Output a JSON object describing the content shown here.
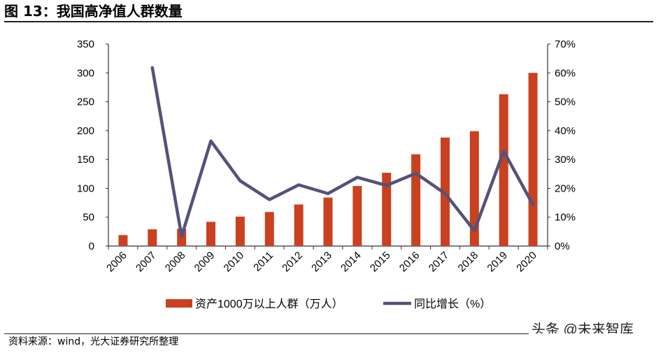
{
  "header": {
    "title": "图 13：我国高净值人群数量"
  },
  "footer": {
    "source": "资料来源：wind，光大证券研究所整理",
    "watermark": "头条 @未来智库"
  },
  "chart_data": {
    "type": "bar+line",
    "title": "",
    "categories": [
      "2006",
      "2007",
      "2008",
      "2009",
      "2010",
      "2011",
      "2012",
      "2013",
      "2014",
      "2015",
      "2016",
      "2017",
      "2018",
      "2019",
      "2020"
    ],
    "series": [
      {
        "name": "资产1000万以上人群（万人）",
        "type": "bar",
        "axis": "left",
        "color": "#C9411F",
        "values": [
          19,
          29,
          30,
          42,
          51,
          59,
          72,
          84,
          104,
          127,
          159,
          188,
          199,
          263,
          300
        ]
      },
      {
        "name": "同比增长（%）",
        "type": "line",
        "axis": "right",
        "color": "#54527A",
        "values": [
          null,
          61.8,
          3.4,
          36.4,
          22.6,
          16.1,
          21.2,
          18.2,
          23.8,
          21.0,
          25.2,
          18.2,
          5.3,
          32.9,
          14.3
        ]
      }
    ],
    "left_axis": {
      "ylim": [
        0,
        350
      ],
      "ticks": [
        "0",
        "50",
        "100",
        "150",
        "200",
        "250",
        "300",
        "350"
      ]
    },
    "right_axis": {
      "ylim": [
        0,
        70
      ],
      "ticks": [
        "0%",
        "10%",
        "20%",
        "30%",
        "40%",
        "50%",
        "60%",
        "70%"
      ]
    },
    "grid": false,
    "legend": "bottom"
  }
}
